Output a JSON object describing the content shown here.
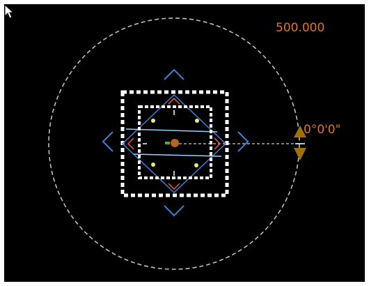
{
  "viewport": {
    "background": "#000000",
    "distance_readout": "500.000",
    "angle_readout": "0°0'0\"",
    "readout_color": "#e0741c"
  },
  "colors": {
    "handle_blue": "#3d7fd6",
    "handle_red": "#e0502a",
    "gizmo_white": "#ffffff",
    "orbit_ring": "#bfbfbf",
    "center_orange": "#b5651d",
    "marker_gold": "#a0700a",
    "dot_yellow": "#e8e880",
    "pin_green": "#3cb043",
    "guide_cyan": "#8fd3ff"
  },
  "icons": {
    "cursor": "arrow-pointer-icon",
    "rotate_up": "triangle-up-icon",
    "rotate_down": "triangle-down-icon"
  }
}
